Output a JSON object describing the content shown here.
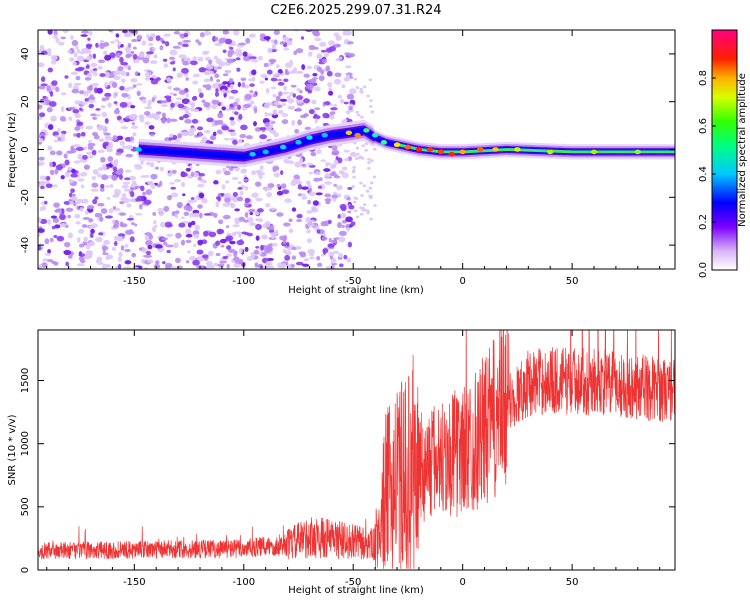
{
  "title": "C2E6.2025.299.07.31.R24",
  "chart_data": [
    {
      "type": "heatmap",
      "xlabel": "Height of straight line (km)",
      "ylabel": "Frequency (Hz)",
      "xlim": [
        -194,
        97
      ],
      "ylim": [
        -50,
        50
      ],
      "xticks": [
        -150,
        -100,
        -50,
        0,
        50
      ],
      "yticks": [
        -40,
        -20,
        0,
        20,
        40
      ],
      "colorbar": {
        "label": "Normalized spectral amplitude",
        "range": [
          0,
          1
        ],
        "ticks": [
          0.0,
          0.2,
          0.4,
          0.6,
          0.8
        ],
        "tick_labels": [
          "0.0",
          "0.2",
          "0.4",
          "0.6",
          "0.8"
        ]
      },
      "noise_region_x": [
        -194,
        -50
      ],
      "signal_track": {
        "x": [
          -148,
          -100,
          -90,
          -80,
          -70,
          -60,
          -52,
          -45,
          -40,
          -35,
          -30,
          -20,
          -10,
          0,
          20,
          50,
          97
        ],
        "frequency": [
          0,
          -3,
          -1,
          1,
          4,
          6,
          7,
          8,
          5,
          3,
          2,
          0,
          -1,
          -1,
          0,
          -1,
          -1
        ]
      }
    },
    {
      "type": "line",
      "xlabel": "Height of straight line (km)",
      "ylabel": "SNR (10 * v/v)",
      "xlim": [
        -194,
        97
      ],
      "ylim": [
        0,
        1900
      ],
      "xticks": [
        -150,
        -100,
        -50,
        0,
        50
      ],
      "yticks": [
        0,
        500,
        1000,
        1500
      ],
      "color": "#ee3333",
      "series": [
        {
          "name": "SNR",
          "x": [
            -194,
            -150,
            -100,
            -80,
            -70,
            -60,
            -50,
            -40,
            -35,
            -30,
            -20,
            -10,
            0,
            10,
            20,
            30,
            40,
            50,
            60,
            70,
            80,
            97
          ],
          "y": [
            150,
            160,
            170,
            200,
            260,
            250,
            220,
            200,
            600,
            700,
            800,
            880,
            940,
            1100,
            1300,
            1480,
            1500,
            1500,
            1490,
            1470,
            1450,
            1420
          ]
        }
      ]
    }
  ]
}
